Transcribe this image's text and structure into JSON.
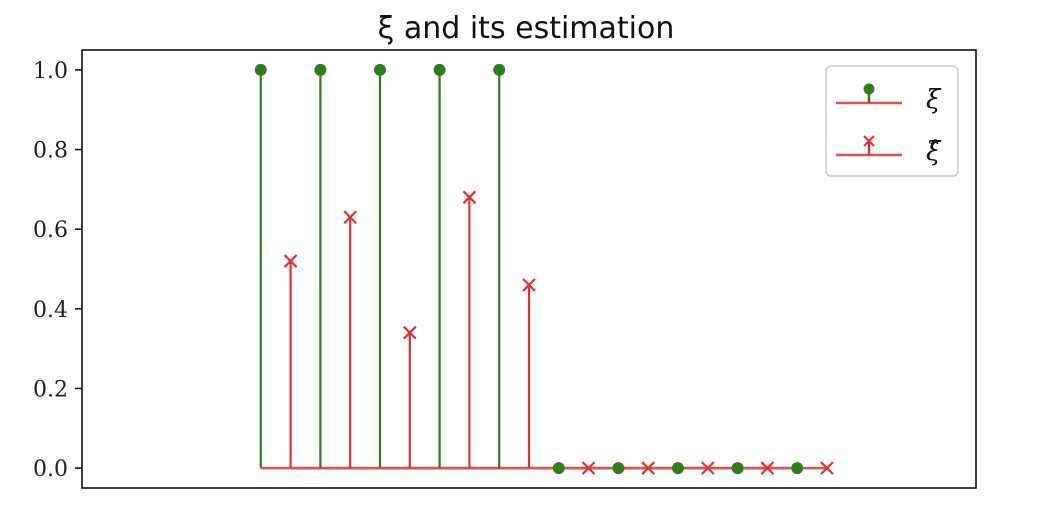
{
  "chart_data": {
    "type": "stem",
    "title": "ξ and its estimation",
    "xlabel": "",
    "ylabel": "",
    "ylim": [
      -0.05,
      1.05
    ],
    "xlim": [
      -6,
      24
    ],
    "y_ticks": [
      "0.0",
      "0.2",
      "0.4",
      "0.6",
      "0.8",
      "1.0"
    ],
    "x_ticks_visible": false,
    "grid": false,
    "legend_position": "top-right",
    "series": [
      {
        "name": "ξ",
        "color": "#2e7d1e",
        "marker": "circle",
        "x": [
          0,
          2,
          4,
          6,
          8,
          10,
          12,
          14,
          16,
          18
        ],
        "values": [
          1,
          1,
          1,
          1,
          1,
          0,
          0,
          0,
          0,
          0
        ]
      },
      {
        "name": "ξ̂",
        "color": "#e03030",
        "marker": "x",
        "x": [
          1,
          3,
          5,
          7,
          9,
          11,
          13,
          15,
          17,
          19
        ],
        "values": [
          0.52,
          0.63,
          0.34,
          0.68,
          0.46,
          0,
          0,
          0,
          0,
          0
        ]
      }
    ]
  }
}
